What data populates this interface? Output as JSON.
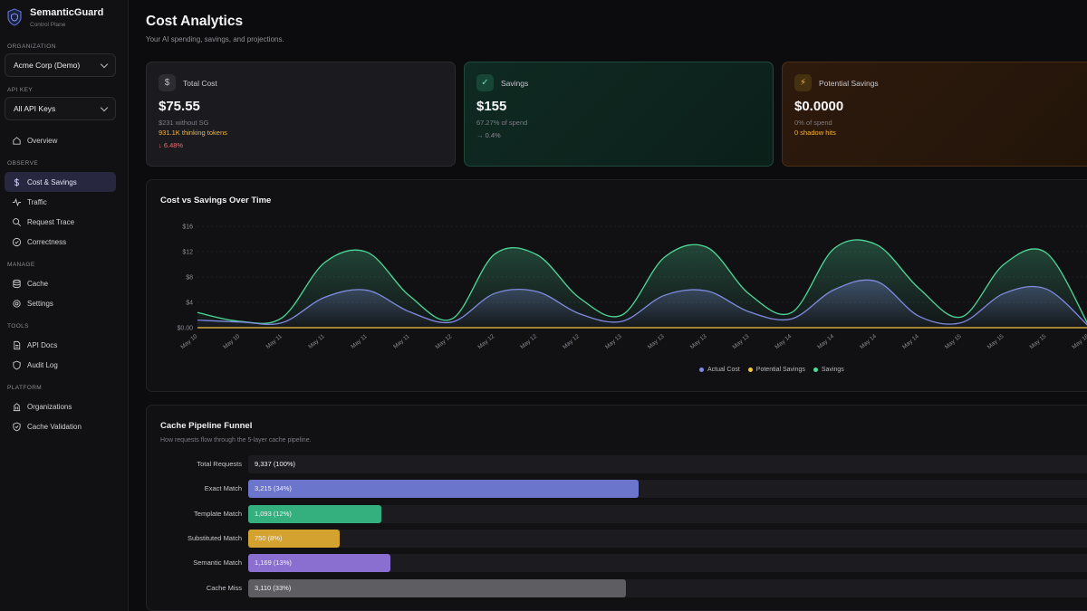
{
  "brand": {
    "name": "SemanticGuard",
    "subtitle": "Control Plane"
  },
  "sidebar": {
    "org_label": "Organization",
    "org_value": "Acme Corp (Demo)",
    "apikey_label": "API Key",
    "apikey_value": "All API Keys",
    "overview": "Overview",
    "sections": {
      "observe": "Observe",
      "manage": "Manage",
      "tools": "Tools",
      "platform": "Platform"
    },
    "items": {
      "cost": "Cost & Savings",
      "traffic": "Traffic",
      "trace": "Request Trace",
      "correctness": "Correctness",
      "cache": "Cache",
      "settings": "Settings",
      "apidocs": "API Docs",
      "audit": "Audit Log",
      "orgs": "Organizations",
      "cachevalid": "Cache Validation"
    }
  },
  "page": {
    "title": "Cost Analytics",
    "subtitle": "Your AI spending, savings, and projections."
  },
  "cards": {
    "total": {
      "icon": "dollar-icon",
      "label": "Total Cost",
      "value": "$75.55",
      "line1": "$231 without SG",
      "line2": "931.1K thinking tokens",
      "line3": "↓ 6.48%"
    },
    "savings": {
      "icon": "check-icon",
      "label": "Savings",
      "value": "$155",
      "line1": "67.27% of spend",
      "line2": "→ 0.4%"
    },
    "potential": {
      "icon": "lightning-icon",
      "label": "Potential Savings",
      "value": "$0.0000",
      "line1": "0% of spend",
      "line2": "0 shadow hits"
    }
  },
  "colors": {
    "actual": "#7f8be0",
    "potential": "#f5c542",
    "savings": "#4ed89a"
  },
  "chart_data": {
    "type": "area",
    "title": "Cost vs Savings Over Time",
    "y_ticks": [
      "$16",
      "$12",
      "$8",
      "$4",
      "$0.00"
    ],
    "ylim": [
      0,
      16
    ],
    "x": [
      "May 10",
      "May 10",
      "May 11",
      "May 11",
      "May 11",
      "May 11",
      "May 12",
      "May 12",
      "May 12",
      "May 12",
      "May 13",
      "May 13",
      "May 13",
      "May 13",
      "May 14",
      "May 14",
      "May 14",
      "May 14",
      "May 15",
      "May 15",
      "May 15",
      "May 16"
    ],
    "series": [
      {
        "name": "Actual Cost",
        "values": [
          1.2,
          0.9,
          0.8,
          4.8,
          5.9,
          2.5,
          0.9,
          5.4,
          5.7,
          2.2,
          1.0,
          5.1,
          5.8,
          2.5,
          1.4,
          6.0,
          7.3,
          1.8,
          0.8,
          5.4,
          6.1,
          0.2
        ]
      },
      {
        "name": "Potential Savings",
        "values": [
          0,
          0,
          0,
          0,
          0,
          0,
          0,
          0,
          0,
          0,
          0,
          0,
          0,
          0,
          0,
          0,
          0,
          0,
          0,
          0,
          0,
          0
        ]
      },
      {
        "name": "Savings",
        "values": [
          2.4,
          1.0,
          1.6,
          10.3,
          11.9,
          5.0,
          1.4,
          11.6,
          11.5,
          4.7,
          2.0,
          11.1,
          12.7,
          5.3,
          2.4,
          12.5,
          13.1,
          6.2,
          1.7,
          10.0,
          11.8,
          0.3
        ]
      }
    ],
    "legend": [
      "Actual Cost",
      "Potential Savings",
      "Savings"
    ],
    "legend_position": "bottom-center"
  },
  "funnel": {
    "title": "Cache Pipeline Funnel",
    "subtitle": "How requests flow through the 5-layer cache pipeline.",
    "rows": [
      {
        "label": "Total Requests",
        "text": "9,337 (100%)",
        "value": 9337,
        "color": "#1c1c20"
      },
      {
        "label": "Exact Match",
        "text": "3,215 (34%)",
        "value": 3215,
        "color": "#6b75cc"
      },
      {
        "label": "Template Match",
        "text": "1,093 (12%)",
        "value": 1093,
        "color": "#34b07e"
      },
      {
        "label": "Substituted Match",
        "text": "750 (8%)",
        "value": 750,
        "color": "#d4a22e"
      },
      {
        "label": "Semantic Match",
        "text": "1,169 (13%)",
        "value": 1169,
        "color": "#8b6fd0"
      },
      {
        "label": "Cache Miss",
        "text": "3,110 (33%)",
        "value": 3110,
        "color": "#5d5d62"
      }
    ]
  }
}
